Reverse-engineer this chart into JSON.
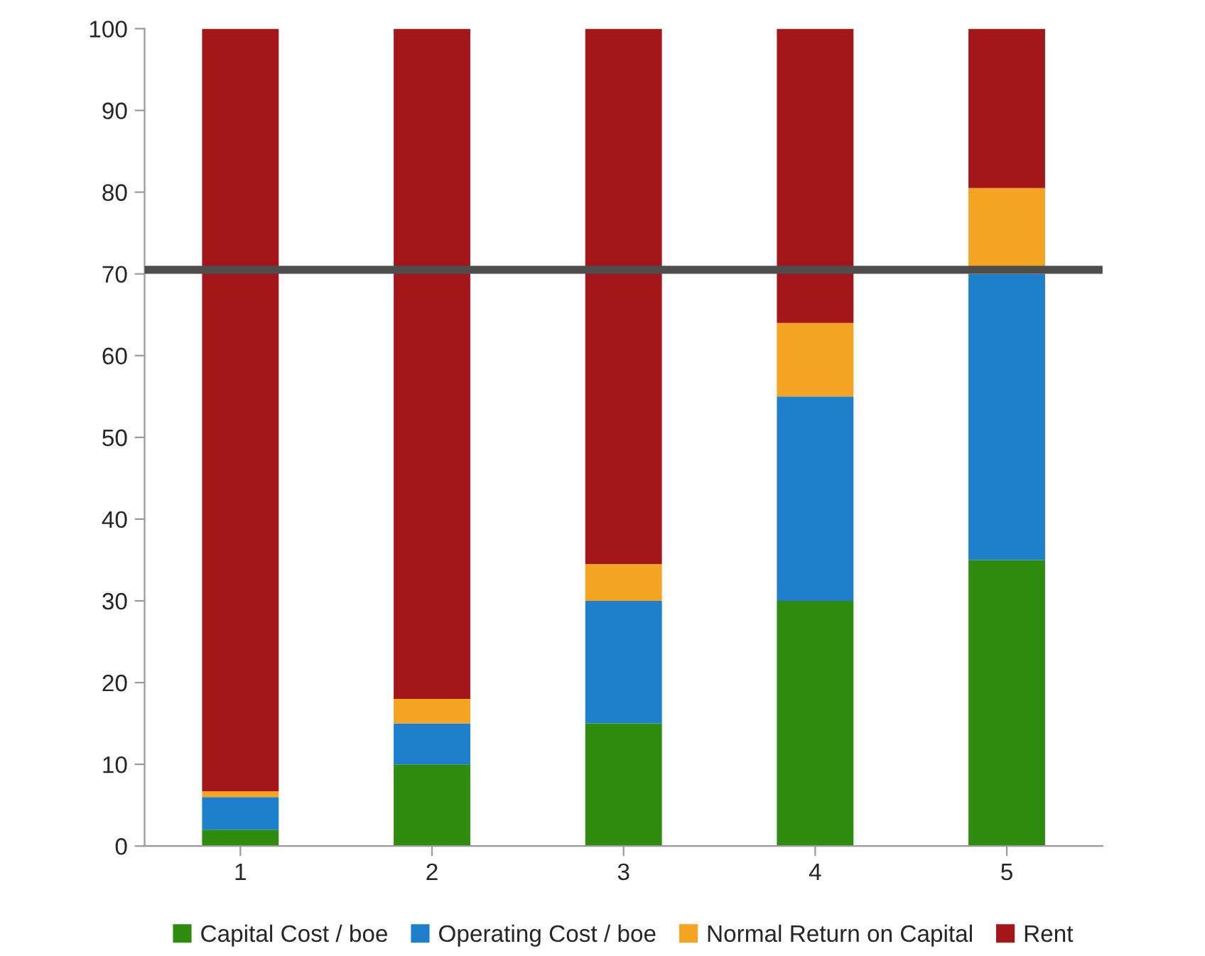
{
  "chart_data": {
    "type": "bar",
    "stacked": true,
    "categories": [
      "1",
      "2",
      "3",
      "4",
      "5"
    ],
    "series": [
      {
        "name": "Capital Cost / boe",
        "color": "#2e8b0e",
        "values": [
          2,
          10,
          15,
          30,
          35
        ]
      },
      {
        "name": "Operating Cost / boe",
        "color": "#1e7fcb",
        "values": [
          4,
          5,
          15,
          25,
          35
        ]
      },
      {
        "name": "Normal Return on Capital",
        "color": "#f4a322",
        "values": [
          0.7,
          3,
          4.5,
          9,
          10.5
        ]
      },
      {
        "name": "Rent",
        "color": "#a3171b",
        "values": [
          93.3,
          82,
          65.5,
          36,
          19.5
        ]
      }
    ],
    "ylim": [
      0,
      100
    ],
    "yticks": [
      0,
      10,
      20,
      30,
      40,
      50,
      60,
      70,
      80,
      90,
      100
    ],
    "ref_lines": [
      {
        "axis": "y",
        "value": 70.5,
        "color": "#4d4d4d"
      }
    ],
    "legend": "bottom",
    "grid": false
  }
}
